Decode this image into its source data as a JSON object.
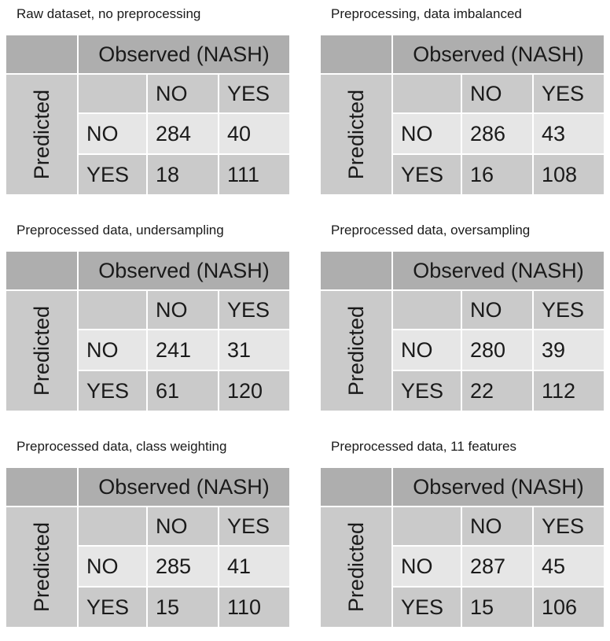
{
  "colors": {
    "header-dark": "#aeaeae",
    "cell-medium": "#cacaca",
    "cell-light": "#e6e6e6",
    "divider": "#ffffff",
    "text": "#1a1a1a"
  },
  "chart_data": [
    {
      "type": "table",
      "title": "Raw dataset, no preprocessing",
      "col_axis_label": "Observed (NASH)",
      "row_axis_label": "Predicted",
      "categories": [
        "NO",
        "YES"
      ],
      "matrix": {
        "no_no": 284,
        "no_yes": 40,
        "yes_no": 18,
        "yes_yes": 111
      }
    },
    {
      "type": "table",
      "title": "Preprocessing, data imbalanced",
      "col_axis_label": "Observed (NASH)",
      "row_axis_label": "Predicted",
      "categories": [
        "NO",
        "YES"
      ],
      "matrix": {
        "no_no": 286,
        "no_yes": 43,
        "yes_no": 16,
        "yes_yes": 108
      }
    },
    {
      "type": "table",
      "title": "Preprocessed data, undersampling",
      "col_axis_label": "Observed (NASH)",
      "row_axis_label": "Predicted",
      "categories": [
        "NO",
        "YES"
      ],
      "matrix": {
        "no_no": 241,
        "no_yes": 31,
        "yes_no": 61,
        "yes_yes": 120
      }
    },
    {
      "type": "table",
      "title": "Preprocessed data, oversampling",
      "col_axis_label": "Observed (NASH)",
      "row_axis_label": "Predicted",
      "categories": [
        "NO",
        "YES"
      ],
      "matrix": {
        "no_no": 280,
        "no_yes": 39,
        "yes_no": 22,
        "yes_yes": 112
      }
    },
    {
      "type": "table",
      "title": "Preprocessed data, class weighting",
      "col_axis_label": "Observed (NASH)",
      "row_axis_label": "Predicted",
      "categories": [
        "NO",
        "YES"
      ],
      "matrix": {
        "no_no": 285,
        "no_yes": 41,
        "yes_no": 15,
        "yes_yes": 110
      }
    },
    {
      "type": "table",
      "title": "Preprocessed data, 11 features",
      "col_axis_label": "Observed (NASH)",
      "row_axis_label": "Predicted",
      "categories": [
        "NO",
        "YES"
      ],
      "matrix": {
        "no_no": 287,
        "no_yes": 45,
        "yes_no": 15,
        "yes_yes": 106
      }
    }
  ]
}
